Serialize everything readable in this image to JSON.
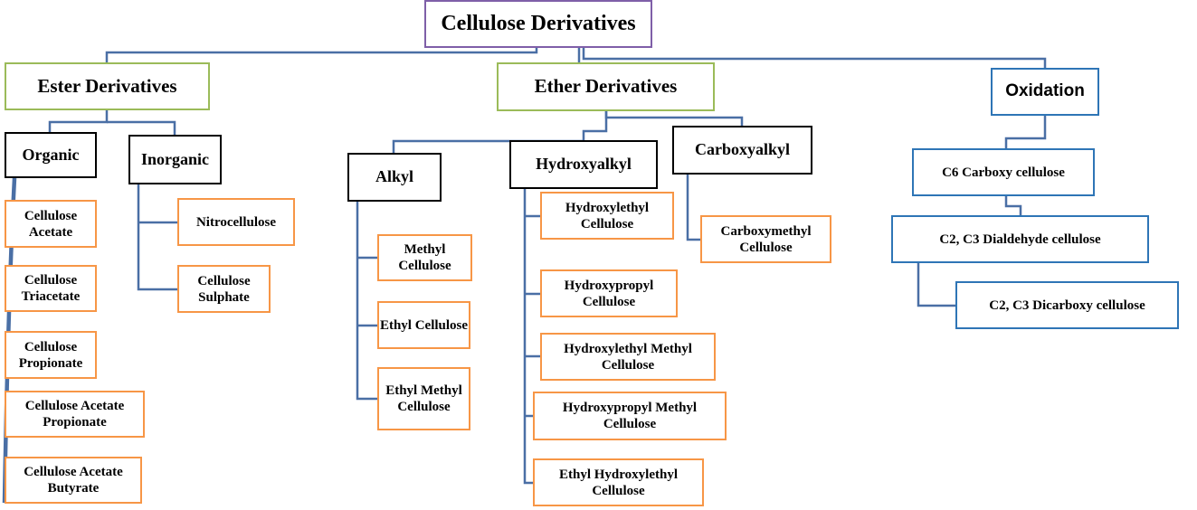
{
  "title": "Cellulose Derivatives",
  "categories": {
    "ester": "Ester Derivatives",
    "ether": "Ether Derivatives",
    "oxidation": "Oxidation"
  },
  "ester": {
    "organic": "Organic",
    "inorganic": "Inorganic",
    "organic_items": [
      "Cellulose Acetate",
      "Cellulose Triacetate",
      "Cellulose Propionate",
      "Cellulose Acetate Propionate",
      "Cellulose Acetate Butyrate"
    ],
    "inorganic_items": [
      "Nitrocellulose",
      "Cellulose Sulphate"
    ]
  },
  "ether": {
    "alkyl": "Alkyl",
    "hydroxyalkyl": "Hydroxyalkyl",
    "carboxyalkyl": "Carboxyalkyl",
    "alkyl_items": [
      "Methyl Cellulose",
      "Ethyl Cellulose",
      "Ethyl Methyl Cellulose"
    ],
    "hydroxyalkyl_items": [
      "Hydroxylethyl Cellulose",
      "Hydroxypropyl Cellulose",
      "Hydroxylethyl Methyl Cellulose",
      "Hydroxypropyl Methyl Cellulose",
      "Ethyl Hydroxylethyl Cellulose"
    ],
    "carboxyalkyl_items": [
      "Carboxymethyl Cellulose"
    ]
  },
  "oxidation": {
    "items": [
      "C6 Carboxy cellulose",
      "C2, C3 Dialdehyde cellulose",
      "C2, C3 Dicarboxy cellulose"
    ]
  },
  "colors": {
    "connector": "#4a6fa5",
    "root_border": "#7f5fa8",
    "category_border": "#9bbb59",
    "oxidation_border": "#2e75b6",
    "leaf_border": "#f79646",
    "sub_border": "#000000"
  }
}
